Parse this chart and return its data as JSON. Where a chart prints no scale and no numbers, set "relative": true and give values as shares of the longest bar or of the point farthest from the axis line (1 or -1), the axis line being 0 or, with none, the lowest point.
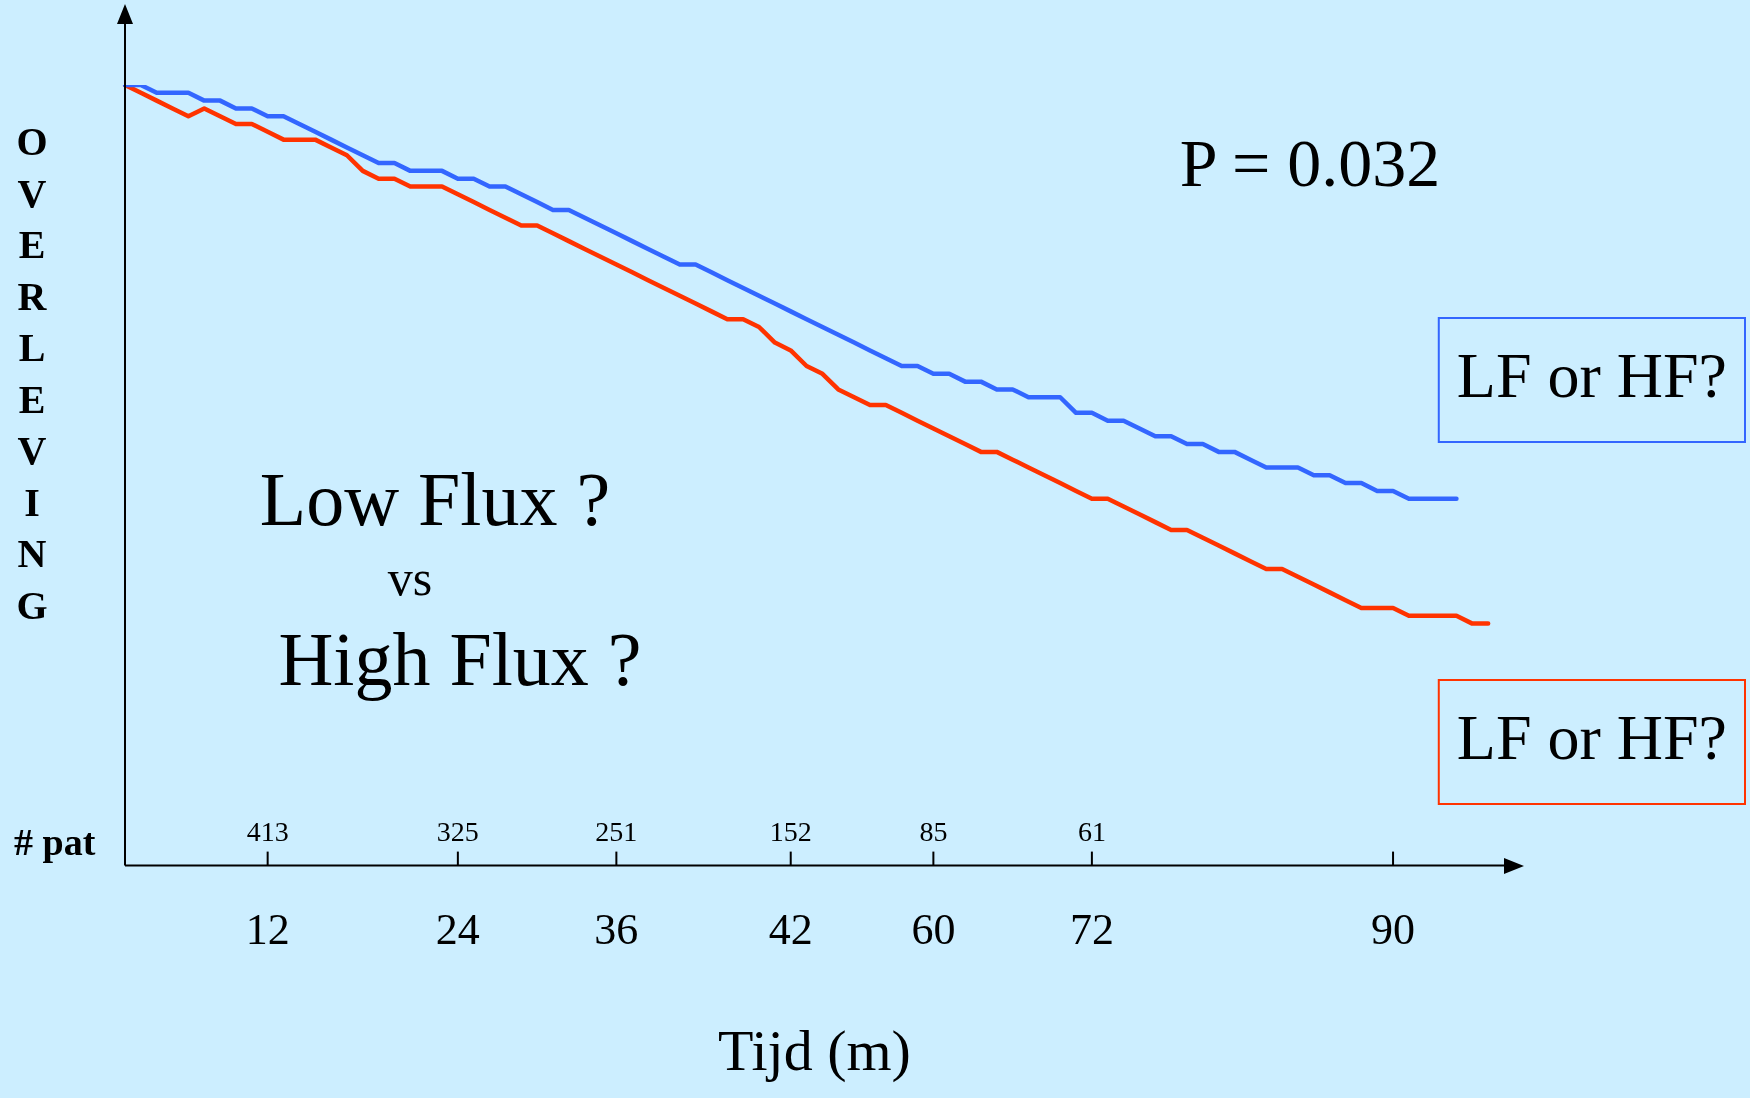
{
  "chart_data": {
    "type": "line",
    "relative": true,
    "xlabel": "Tijd (m)",
    "ylabel": "OVERLEVING",
    "categories": [
      null,
      null,
      null,
      null,
      null,
      null,
      null,
      null,
      null,
      "12",
      null,
      null,
      null,
      null,
      null,
      null,
      null,
      null,
      null,
      null,
      null,
      "24",
      null,
      null,
      null,
      null,
      null,
      null,
      null,
      null,
      null,
      "36",
      null,
      null,
      null,
      null,
      null,
      null,
      null,
      null,
      null,
      null,
      "42",
      null,
      null,
      null,
      null,
      null,
      null,
      null,
      null,
      "60",
      null,
      null,
      null,
      null,
      null,
      null,
      null,
      null,
      null,
      "72",
      null,
      null,
      null,
      null,
      null,
      null,
      null,
      null,
      null,
      null,
      null,
      null,
      null,
      null,
      null,
      null,
      null,
      null,
      "90",
      null,
      null,
      null,
      null,
      null,
      null,
      null
    ],
    "series": [
      {
        "name": "LF or HF?",
        "color": "#3366ff",
        "values": [
          1.0,
          1.0,
          0.99,
          0.99,
          0.99,
          0.98,
          0.98,
          0.97,
          0.97,
          0.96,
          0.96,
          0.95,
          0.94,
          0.93,
          0.92,
          0.91,
          0.9,
          0.9,
          0.89,
          0.89,
          0.89,
          0.88,
          0.88,
          0.87,
          0.87,
          0.86,
          0.85,
          0.84,
          0.84,
          0.83,
          0.82,
          0.81,
          0.8,
          0.79,
          0.78,
          0.77,
          0.77,
          0.76,
          0.75,
          0.74,
          0.73,
          0.72,
          0.71,
          0.7,
          0.69,
          0.68,
          0.67,
          0.66,
          0.65,
          0.64,
          0.64,
          0.63,
          0.63,
          0.62,
          0.62,
          0.61,
          0.61,
          0.6,
          0.6,
          0.6,
          0.58,
          0.58,
          0.57,
          0.57,
          0.56,
          0.55,
          0.55,
          0.54,
          0.54,
          0.53,
          0.53,
          0.52,
          0.51,
          0.51,
          0.51,
          0.5,
          0.5,
          0.49,
          0.49,
          0.48,
          0.48,
          0.47,
          0.47,
          0.47,
          0.47,
          null,
          null,
          null
        ]
      },
      {
        "name": "LF or HF?",
        "color": "#ff3300",
        "values": [
          1.0,
          0.99,
          0.98,
          0.97,
          0.96,
          0.97,
          0.96,
          0.95,
          0.95,
          0.94,
          0.93,
          0.93,
          0.93,
          0.92,
          0.91,
          0.89,
          0.88,
          0.88,
          0.87,
          0.87,
          0.87,
          0.86,
          0.85,
          0.84,
          0.83,
          0.82,
          0.82,
          0.81,
          0.8,
          0.79,
          0.78,
          0.77,
          0.76,
          0.75,
          0.74,
          0.73,
          0.72,
          0.71,
          0.7,
          0.7,
          0.69,
          0.67,
          0.66,
          0.64,
          0.63,
          0.61,
          0.6,
          0.59,
          0.59,
          0.58,
          0.57,
          0.56,
          0.55,
          0.54,
          0.53,
          0.53,
          0.52,
          0.51,
          0.5,
          0.49,
          0.48,
          0.47,
          0.47,
          0.46,
          0.45,
          0.44,
          0.43,
          0.43,
          0.42,
          0.41,
          0.4,
          0.39,
          0.38,
          0.38,
          0.37,
          0.36,
          0.35,
          0.34,
          0.33,
          0.33,
          0.33,
          0.32,
          0.32,
          0.32,
          0.32,
          0.31,
          0.31,
          null
        ]
      }
    ],
    "annotations": [
      "P = 0.032",
      "Low Flux ?",
      "vs",
      "High Flux ?",
      "# pat",
      "413",
      "325",
      "251",
      "152",
      "85",
      "61"
    ]
  }
}
